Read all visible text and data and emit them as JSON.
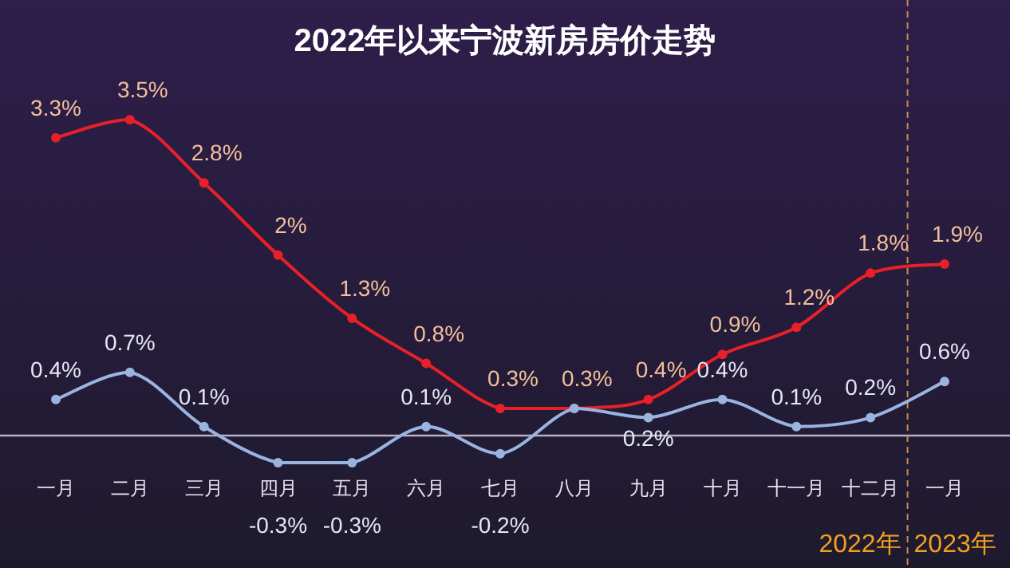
{
  "chart_data": {
    "type": "line",
    "title": "2022年以来宁波新房房价走势",
    "categories": [
      "一月",
      "二月",
      "三月",
      "四月",
      "五月",
      "六月",
      "七月",
      "八月",
      "九月",
      "十月",
      "十一月",
      "十二月",
      "一月"
    ],
    "series": [
      {
        "color": "#e8202a",
        "values": [
          3.3,
          3.5,
          2.8,
          2,
          1.3,
          0.8,
          0.3,
          0.3,
          0.4,
          0.9,
          1.2,
          1.8,
          1.9
        ],
        "value_labels": [
          "3.3%",
          "3.5%",
          "2.8%",
          "2%",
          "1.3%",
          "0.8%",
          "0.3%",
          "0.3%",
          "0.4%",
          "0.9%",
          "1.2%",
          "1.8%",
          "1.9%"
        ]
      },
      {
        "color": "#9ab4e0",
        "values": [
          0.4,
          0.7,
          0.1,
          -0.3,
          -0.3,
          0.1,
          -0.2,
          0.3,
          0.2,
          0.4,
          0.1,
          0.2,
          0.6
        ],
        "value_labels": [
          "0.4%",
          "0.7%",
          "0.1%",
          "-0.3%",
          "-0.3%",
          "0.1%",
          "-0.2%",
          null,
          "0.2%",
          "0.4%",
          "0.1%",
          "0.2%",
          "0.6%"
        ]
      }
    ],
    "annotations": [
      "2022年",
      "2023年"
    ],
    "marker": "circle"
  }
}
